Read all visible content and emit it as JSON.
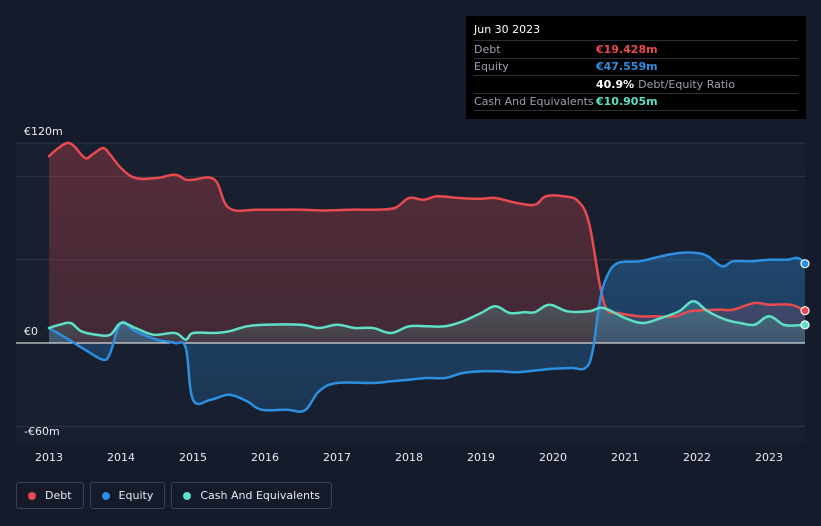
{
  "tooltip": {
    "date": "Jun 30 2023",
    "rows": [
      {
        "label": "Debt",
        "value": "€19.428m",
        "color": "#e84a4f"
      },
      {
        "label": "Equity",
        "value": "€47.559m",
        "color": "#2d8fe0"
      },
      {
        "ratio": "40.9%",
        "ratio_label": "Debt/Equity Ratio"
      },
      {
        "label": "Cash And Equivalents",
        "value": "€10.905m",
        "color": "#5ee0c6"
      }
    ]
  },
  "legend": [
    {
      "label": "Debt",
      "color": "#e84a4f"
    },
    {
      "label": "Equity",
      "color": "#2d8fe0"
    },
    {
      "label": "Cash And Equivalents",
      "color": "#5ee0c6"
    }
  ],
  "chart_data": {
    "type": "area",
    "title": "",
    "xlabel": "",
    "ylabel": "",
    "ylim": [
      -60,
      120
    ],
    "xlim": [
      2012.95,
      2023.5
    ],
    "y_tick_labels": [
      {
        "value": 120,
        "label": "€120m"
      },
      {
        "value": 0,
        "label": "€0"
      },
      {
        "value": -60,
        "label": "-€60m"
      }
    ],
    "x_ticks": [
      2013,
      2014,
      2015,
      2016,
      2017,
      2018,
      2019,
      2020,
      2021,
      2022,
      2023
    ],
    "x_tick_labels": [
      "2013",
      "2014",
      "2015",
      "2016",
      "2017",
      "2018",
      "2019",
      "2020",
      "2021",
      "2022",
      "2023"
    ],
    "series": [
      {
        "name": "Debt",
        "color": "#e84a4f",
        "points": [
          [
            2013.0,
            112
          ],
          [
            2013.1,
            116
          ],
          [
            2013.25,
            120
          ],
          [
            2013.35,
            118
          ],
          [
            2013.5,
            111
          ],
          [
            2013.6,
            113
          ],
          [
            2013.75,
            117
          ],
          [
            2013.85,
            113
          ],
          [
            2014.0,
            105
          ],
          [
            2014.2,
            99
          ],
          [
            2014.5,
            99
          ],
          [
            2014.75,
            101
          ],
          [
            2014.9,
            98
          ],
          [
            2015.0,
            98
          ],
          [
            2015.3,
            98
          ],
          [
            2015.5,
            81
          ],
          [
            2015.9,
            80
          ],
          [
            2016.5,
            80
          ],
          [
            2016.8,
            79.5
          ],
          [
            2017.2,
            80
          ],
          [
            2017.5,
            80
          ],
          [
            2017.8,
            81
          ],
          [
            2018.0,
            87
          ],
          [
            2018.2,
            86
          ],
          [
            2018.4,
            88
          ],
          [
            2018.7,
            87
          ],
          [
            2019.0,
            86.5
          ],
          [
            2019.2,
            87
          ],
          [
            2019.5,
            84
          ],
          [
            2019.75,
            83
          ],
          [
            2019.9,
            88
          ],
          [
            2020.15,
            88
          ],
          [
            2020.35,
            85
          ],
          [
            2020.5,
            72
          ],
          [
            2020.65,
            35
          ],
          [
            2020.75,
            20
          ],
          [
            2020.9,
            18
          ],
          [
            2021.2,
            16
          ],
          [
            2021.4,
            16
          ],
          [
            2021.7,
            16
          ],
          [
            2021.9,
            19
          ],
          [
            2022.3,
            20
          ],
          [
            2022.5,
            20
          ],
          [
            2022.8,
            24
          ],
          [
            2023.0,
            23
          ],
          [
            2023.3,
            23
          ],
          [
            2023.5,
            19.4
          ]
        ]
      },
      {
        "name": "Equity",
        "color": "#2d8fe0",
        "points": [
          [
            2013.0,
            9
          ],
          [
            2013.2,
            4
          ],
          [
            2013.5,
            -4
          ],
          [
            2013.75,
            -10
          ],
          [
            2013.85,
            -6
          ],
          [
            2014.0,
            12
          ],
          [
            2014.2,
            7
          ],
          [
            2014.5,
            2
          ],
          [
            2014.75,
            0
          ],
          [
            2014.9,
            -3
          ],
          [
            2015.0,
            -34
          ],
          [
            2015.25,
            -34
          ],
          [
            2015.5,
            -31
          ],
          [
            2015.75,
            -35
          ],
          [
            2015.95,
            -40
          ],
          [
            2016.3,
            -40
          ],
          [
            2016.55,
            -40.5
          ],
          [
            2016.75,
            -29
          ],
          [
            2017.0,
            -24
          ],
          [
            2017.5,
            -24
          ],
          [
            2017.75,
            -23
          ],
          [
            2018.0,
            -22
          ],
          [
            2018.25,
            -21
          ],
          [
            2018.5,
            -21
          ],
          [
            2018.75,
            -18
          ],
          [
            2019.0,
            -17
          ],
          [
            2019.25,
            -17
          ],
          [
            2019.5,
            -17.5
          ],
          [
            2019.75,
            -16.5
          ],
          [
            2020.0,
            -15.5
          ],
          [
            2020.25,
            -15
          ],
          [
            2020.45,
            -15
          ],
          [
            2020.55,
            -5
          ],
          [
            2020.65,
            25
          ],
          [
            2020.75,
            40
          ],
          [
            2020.9,
            48
          ],
          [
            2021.2,
            49
          ],
          [
            2021.5,
            52
          ],
          [
            2021.75,
            54
          ],
          [
            2022.0,
            54
          ],
          [
            2022.15,
            52
          ],
          [
            2022.35,
            46
          ],
          [
            2022.5,
            49
          ],
          [
            2022.75,
            49
          ],
          [
            2023.0,
            50
          ],
          [
            2023.25,
            50
          ],
          [
            2023.4,
            51
          ],
          [
            2023.5,
            47.6
          ]
        ]
      },
      {
        "name": "Cash And Equivalents",
        "color": "#5ee0c6",
        "points": [
          [
            2013.0,
            9
          ],
          [
            2013.15,
            11
          ],
          [
            2013.3,
            12
          ],
          [
            2013.45,
            7
          ],
          [
            2013.65,
            5
          ],
          [
            2013.85,
            5
          ],
          [
            2014.0,
            12
          ],
          [
            2014.2,
            9
          ],
          [
            2014.45,
            5
          ],
          [
            2014.75,
            6
          ],
          [
            2014.9,
            2
          ],
          [
            2015.0,
            6
          ],
          [
            2015.3,
            6
          ],
          [
            2015.5,
            7
          ],
          [
            2015.75,
            10
          ],
          [
            2016.0,
            11
          ],
          [
            2016.5,
            11
          ],
          [
            2016.75,
            9
          ],
          [
            2017.0,
            11
          ],
          [
            2017.25,
            9
          ],
          [
            2017.5,
            9
          ],
          [
            2017.75,
            6
          ],
          [
            2018.0,
            10
          ],
          [
            2018.25,
            10
          ],
          [
            2018.5,
            10
          ],
          [
            2018.75,
            13
          ],
          [
            2019.0,
            18
          ],
          [
            2019.2,
            22
          ],
          [
            2019.4,
            18
          ],
          [
            2019.6,
            18.5
          ],
          [
            2019.75,
            18.5
          ],
          [
            2019.95,
            23
          ],
          [
            2020.2,
            19
          ],
          [
            2020.5,
            19
          ],
          [
            2020.7,
            21
          ],
          [
            2021.0,
            15
          ],
          [
            2021.25,
            12
          ],
          [
            2021.5,
            15
          ],
          [
            2021.75,
            19
          ],
          [
            2021.95,
            25
          ],
          [
            2022.15,
            19
          ],
          [
            2022.4,
            14
          ],
          [
            2022.6,
            12
          ],
          [
            2022.8,
            11
          ],
          [
            2023.0,
            16
          ],
          [
            2023.2,
            11
          ],
          [
            2023.35,
            10.5
          ],
          [
            2023.5,
            10.9
          ]
        ]
      }
    ]
  }
}
